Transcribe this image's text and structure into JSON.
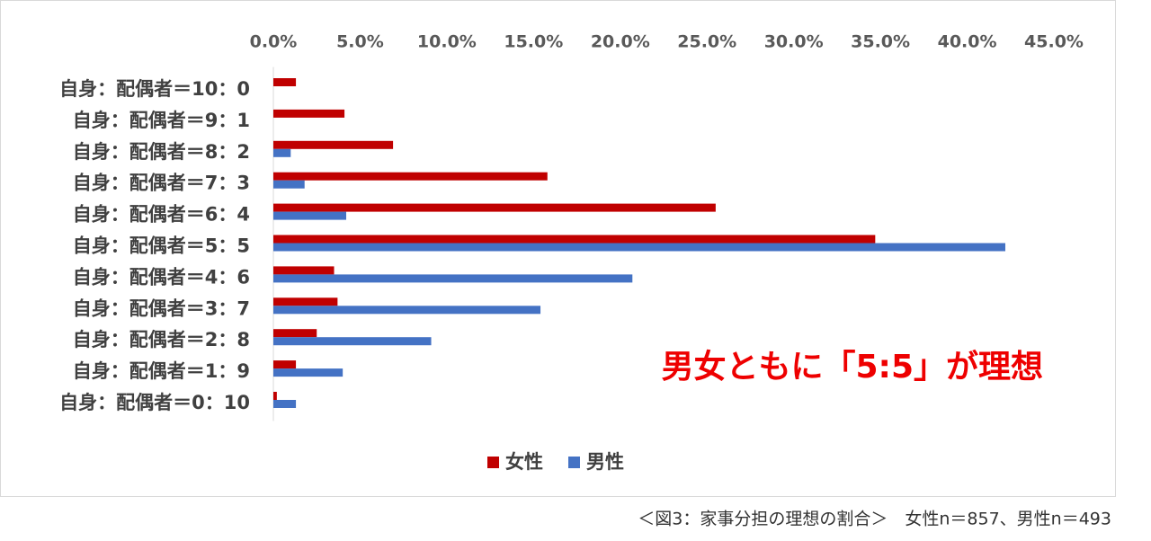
{
  "chart_data": {
    "type": "barh",
    "categories": [
      "自身：配偶者＝10：0",
      "自身：配偶者＝9：1",
      "自身：配偶者＝8：2",
      "自身：配偶者＝7：3",
      "自身：配偶者＝6：4",
      "自身：配偶者＝5：5",
      "自身：配偶者＝4：6",
      "自身：配偶者＝3：7",
      "自身：配偶者＝2：8",
      "自身：配偶者＝1：9",
      "自身：配偶者＝0：10"
    ],
    "series": [
      {
        "name": "女性",
        "color": "#c00000",
        "values": [
          1.3,
          4.1,
          6.9,
          15.8,
          25.5,
          34.7,
          3.5,
          3.7,
          2.5,
          1.3,
          0.2
        ]
      },
      {
        "name": "男性",
        "color": "#4472c4",
        "values": [
          0,
          0,
          1.0,
          1.8,
          4.2,
          42.2,
          20.7,
          15.4,
          9.1,
          4.0,
          1.3
        ]
      }
    ],
    "xlim": [
      0,
      45
    ],
    "xticks": [
      {
        "value": 0,
        "label": "0.0%"
      },
      {
        "value": 5,
        "label": "5.0%"
      },
      {
        "value": 10,
        "label": "10.0%"
      },
      {
        "value": 15,
        "label": "15.0%"
      },
      {
        "value": 20,
        "label": "20.0%"
      },
      {
        "value": 25,
        "label": "25.0%"
      },
      {
        "value": 30,
        "label": "30.0%"
      },
      {
        "value": 35,
        "label": "35.0%"
      },
      {
        "value": 40,
        "label": "40.0%"
      },
      {
        "value": 45,
        "label": "45.0%"
      }
    ],
    "grid": false,
    "annotation": "男女ともに「5:5」が理想",
    "caption": "＜図3：家事分担の理想の割合＞　女性n＝857、男性n＝493"
  }
}
